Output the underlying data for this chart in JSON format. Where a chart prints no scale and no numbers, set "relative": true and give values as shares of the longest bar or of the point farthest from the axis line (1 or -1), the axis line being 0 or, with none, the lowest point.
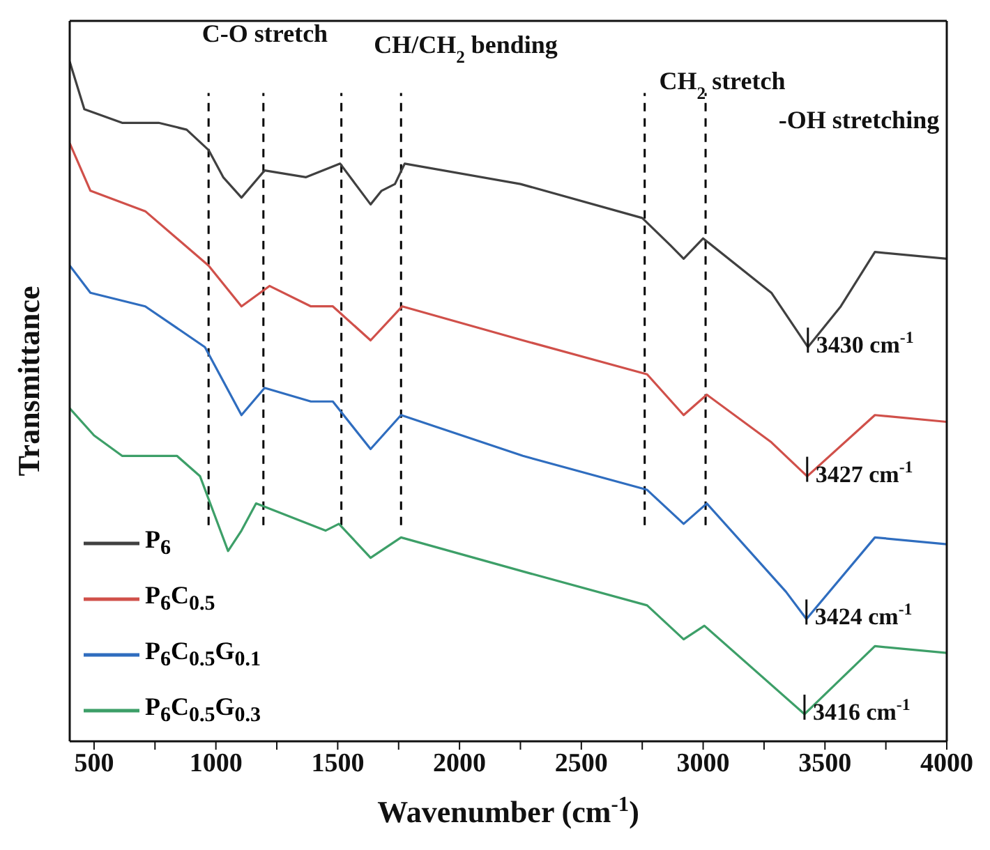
{
  "chart_data": {
    "type": "line",
    "relative": true,
    "xlabel": "Wavenumber (cm$^{-1}$)",
    "ylabel": "Transmittance",
    "xlim": [
      400,
      4000
    ],
    "xticks": [
      500,
      {
        "value": 750,
        "label": null
      },
      1000,
      {
        "value": 1250,
        "label": null
      },
      1500,
      {
        "value": 1750,
        "label": null
      },
      2000,
      {
        "value": 2250,
        "label": null
      },
      2500,
      {
        "value": 2750,
        "label": null
      },
      3000,
      {
        "value": 3250,
        "label": null
      },
      3500,
      {
        "value": 3750,
        "label": null
      },
      4000
    ],
    "legend": "bottom left",
    "grid": false,
    "marker": "none",
    "line_style": "solid",
    "series": [
      {
        "name": "P$_{6}$",
        "color": "#404040",
        "x": [
          400,
          460,
          615,
          765,
          880,
          970,
          1030,
          1105,
          1200,
          1370,
          1510,
          1635,
          1680,
          1735,
          1775,
          2250,
          2750,
          2865,
          2920,
          3000,
          3280,
          3430,
          3565,
          3705,
          4000
        ],
        "values": [
          1.0,
          0.93,
          0.91,
          0.91,
          0.9,
          0.87,
          0.83,
          0.8,
          0.84,
          0.83,
          0.85,
          0.79,
          0.81,
          0.82,
          0.85,
          0.82,
          0.77,
          0.73,
          0.71,
          0.74,
          0.66,
          0.58,
          0.64,
          0.72,
          0.71
        ]
      },
      {
        "name": "P$_{6}$C$_{0.5}$",
        "color": "#d0504a",
        "x": [
          400,
          485,
          710,
          970,
          1105,
          1220,
          1390,
          1480,
          1635,
          1765,
          2260,
          2770,
          2920,
          3015,
          3280,
          3427,
          3705,
          4000
        ],
        "values": [
          0.88,
          0.81,
          0.78,
          0.7,
          0.64,
          0.67,
          0.64,
          0.64,
          0.59,
          0.64,
          0.59,
          0.54,
          0.48,
          0.51,
          0.44,
          0.39,
          0.48,
          0.47
        ]
      },
      {
        "name": "P$_{6}$C$_{0.5}$G$_{0.1}$",
        "color": "#2f6dbf",
        "x": [
          400,
          485,
          710,
          955,
          1105,
          1200,
          1390,
          1480,
          1635,
          1760,
          2260,
          2770,
          2920,
          3015,
          3340,
          3424,
          3705,
          4000
        ],
        "values": [
          0.7,
          0.66,
          0.64,
          0.58,
          0.48,
          0.52,
          0.5,
          0.5,
          0.43,
          0.48,
          0.42,
          0.37,
          0.32,
          0.35,
          0.22,
          0.18,
          0.3,
          0.29
        ]
      },
      {
        "name": "P$_{6}$C$_{0.5}$G$_{0.3}$",
        "color": "#3d9f68",
        "x": [
          400,
          500,
          615,
          840,
          935,
          1050,
          1105,
          1165,
          1450,
          1505,
          1635,
          1760,
          2260,
          2770,
          2920,
          3005,
          3416,
          3705,
          4000
        ],
        "values": [
          0.49,
          0.45,
          0.42,
          0.42,
          0.39,
          0.28,
          0.31,
          0.35,
          0.31,
          0.32,
          0.27,
          0.3,
          0.25,
          0.2,
          0.15,
          0.17,
          0.04,
          0.14,
          0.13
        ]
      }
    ],
    "ref_lines": [
      {
        "axis": "x",
        "value": 970,
        "color": "#000000",
        "line_style": "dashed"
      },
      {
        "axis": "x",
        "value": 1195,
        "color": "#000000",
        "line_style": "dashed"
      },
      {
        "axis": "x",
        "value": 1515,
        "color": "#000000",
        "line_style": "dashed"
      },
      {
        "axis": "x",
        "value": 1760,
        "color": "#000000",
        "line_style": "dashed"
      },
      {
        "axis": "x",
        "value": 2760,
        "color": "#000000",
        "line_style": "dashed"
      },
      {
        "axis": "x",
        "value": 3010,
        "color": "#000000",
        "line_style": "dashed"
      }
    ],
    "annotations": [
      "C-O stretch",
      "CH/CH$_{2}$ bending",
      "CH$_{2}$ stretch",
      "-OH stretching",
      {
        "text": "3430 cm$^{-1}$",
        "x": 3430,
        "y": 0.58
      },
      {
        "text": "3427 cm$^{-1}$",
        "x": 3427,
        "y": 0.39
      },
      {
        "text": "3424 cm$^{-1}$",
        "x": 3424,
        "y": 0.18
      },
      {
        "text": "3416 cm$^{-1}$",
        "x": 3416,
        "y": 0.04
      }
    ]
  }
}
